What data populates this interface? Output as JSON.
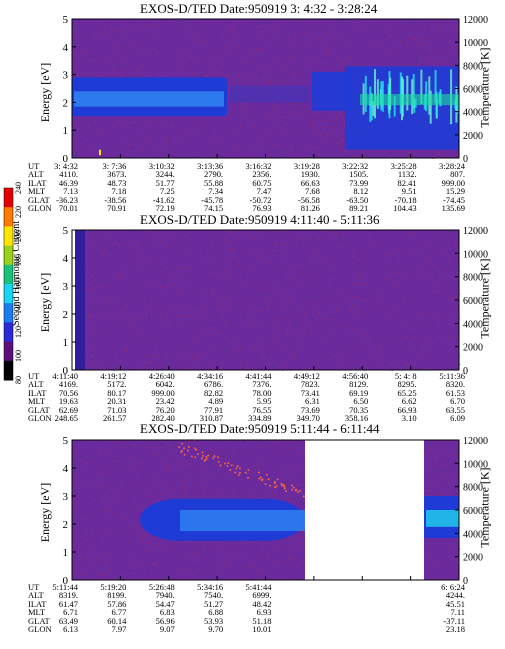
{
  "colors": {
    "background": "#6c2b9c",
    "band": "#1f3bd6",
    "band_core": "#2f86f2",
    "band_hot": "#22e8f0",
    "speckle": "#c22a3a",
    "gap": "#ffffff"
  },
  "colorbar": {
    "label": "Second Harmonic Current",
    "ticks": [
      "80",
      "100",
      "120",
      "140",
      "160",
      "180",
      "200",
      "220",
      "240"
    ],
    "colors": [
      "#000000",
      "#5a0f7a",
      "#2b2ad8",
      "#1a7cf2",
      "#19d4f3",
      "#18c27a",
      "#9ad11a",
      "#ffe500",
      "#ff7a00",
      "#e40000"
    ]
  },
  "chart_data": [
    {
      "type": "heatmap",
      "title": "EXOS-D/TED   Date:950919   3: 4:32 - 3:28:24",
      "ylabel": "Energy [eV]",
      "y2label": "Temperature [K]",
      "ylim": [
        0,
        5
      ],
      "y2lim": [
        0,
        12000
      ],
      "yticks": [
        "0",
        "1",
        "2",
        "3",
        "4",
        "5"
      ],
      "y2ticks": [
        "0",
        "2000",
        "4000",
        "6000",
        "8000",
        "10000",
        "12000"
      ],
      "ephemeris": {
        "labels": [
          "UT",
          "ALT",
          "ILAT",
          "MLT",
          "GLAT",
          "GLON"
        ],
        "columns": [
          [
            "3: 4:32",
            "4110.",
            "46.39",
            "7.13",
            "-36.23",
            "70.01"
          ],
          [
            "3: 7:36",
            "3673.",
            "48.73",
            "7.18",
            "-38.56",
            "70.91"
          ],
          [
            "3:10:32",
            "3244.",
            "51.77",
            "7.25",
            "-41.62",
            "72.19"
          ],
          [
            "3:13:36",
            "2790.",
            "55.88",
            "7.34",
            "-45.78",
            "74.15"
          ],
          [
            "3:16:32",
            "2356.",
            "60.75",
            "7.47",
            "-50.72",
            "76.93"
          ],
          [
            "3:19:28",
            "1930.",
            "66.63",
            "7.68",
            "-56.58",
            "81.26"
          ],
          [
            "3:22:32",
            "1505.",
            "73.99",
            "8.12",
            "-63.50",
            "89.21"
          ],
          [
            "3:25:28",
            "1132.",
            "82.41",
            "9.51",
            "-70.18",
            "104.43"
          ],
          [
            "3:28:24",
            "807.",
            "999.00",
            "15.29",
            "-74.45",
            "135.69"
          ]
        ]
      }
    },
    {
      "type": "heatmap",
      "title": "EXOS-D/TED   Date:950919   4:11:40 - 5:11:36",
      "ylabel": "Energy [eV]",
      "y2label": "Temperature [K]",
      "ylim": [
        0,
        5
      ],
      "y2lim": [
        0,
        12000
      ],
      "yticks": [
        "0",
        "1",
        "2",
        "3",
        "4",
        "5"
      ],
      "y2ticks": [
        "0",
        "2000",
        "4000",
        "6000",
        "8000",
        "10000",
        "12000"
      ],
      "ephemeris": {
        "labels": [
          "UT",
          "ALT",
          "ILAT",
          "MLT",
          "GLAT",
          "GLON"
        ],
        "columns": [
          [
            "4:11:40",
            "4169.",
            "70.56",
            "19.63",
            "62.69",
            "248.65"
          ],
          [
            "4:19:12",
            "5172.",
            "80.17",
            "20.31",
            "71.03",
            "261.57"
          ],
          [
            "4:26:40",
            "6042.",
            "999.00",
            "23.42",
            "76.20",
            "282.40"
          ],
          [
            "4:34:16",
            "6786.",
            "82.82",
            "4.89",
            "77.91",
            "310.87"
          ],
          [
            "4:41:44",
            "7376.",
            "78.00",
            "5.95",
            "76.55",
            "334.89"
          ],
          [
            "4:49:12",
            "7823.",
            "73.41",
            "6.31",
            "73.69",
            "349.70"
          ],
          [
            "4:56:40",
            "8129.",
            "69.19",
            "6.50",
            "70.35",
            "358.16"
          ],
          [
            "5: 4: 8",
            "8295.",
            "65.25",
            "6.62",
            "66.93",
            "3.10"
          ],
          [
            "5:11:36",
            "8320.",
            "61.53",
            "6.70",
            "63.55",
            "6.09"
          ]
        ]
      }
    },
    {
      "type": "heatmap",
      "title": "EXOS-D/TED   Date:950919   5:11:44 - 6:11:44",
      "ylabel": "Energy [eV]",
      "y2label": "Temperature [K]",
      "ylim": [
        0,
        5
      ],
      "y2lim": [
        0,
        12000
      ],
      "yticks": [
        "0",
        "1",
        "2",
        "3",
        "4",
        "5"
      ],
      "y2ticks": [
        "0",
        "2000",
        "4000",
        "6000",
        "8000",
        "10000",
        "12000"
      ],
      "ephemeris": {
        "labels": [
          "UT",
          "ALT",
          "ILAT",
          "MLT",
          "GLAT",
          "GLON"
        ],
        "columns": [
          [
            "5:11:44",
            "8319.",
            "61.47",
            "6.71",
            "63.49",
            "6.13"
          ],
          [
            "5:19:20",
            "8199.",
            "57.86",
            "6.77",
            "60.14",
            "7.97"
          ],
          [
            "5:26:48",
            "7940.",
            "54.47",
            "6.83",
            "56.96",
            "9.07"
          ],
          [
            "5:34:16",
            "7540.",
            "51.27",
            "6.88",
            "53.93",
            "9.70"
          ],
          [
            "5:41:44",
            "6999.",
            "48.42",
            "6.93",
            "51.18",
            "10.01"
          ],
          [
            "",
            "",
            "",
            "",
            "",
            ""
          ],
          [
            "",
            "",
            "",
            "",
            "",
            ""
          ],
          [
            "",
            "",
            "",
            "",
            "",
            ""
          ],
          [
            "6: 6:24",
            "4244.",
            "45.51",
            "7.11",
            "-37.11",
            "23.18"
          ]
        ]
      }
    }
  ]
}
